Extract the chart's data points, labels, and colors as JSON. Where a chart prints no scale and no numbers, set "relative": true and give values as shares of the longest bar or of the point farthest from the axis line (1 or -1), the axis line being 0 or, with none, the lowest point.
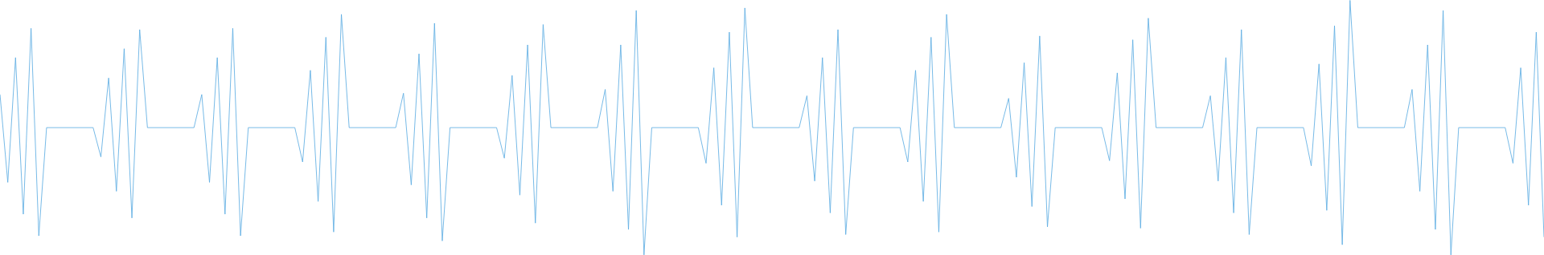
{
  "chart_data": {
    "type": "line",
    "relative": true,
    "categories": [
      null,
      null,
      null,
      null,
      null,
      null,
      null,
      null,
      null,
      null,
      null,
      null,
      null,
      null,
      null,
      null,
      null,
      null,
      null,
      null,
      null,
      null,
      null,
      null,
      null,
      null,
      null,
      null,
      null,
      null,
      null,
      null,
      null,
      null,
      null,
      null,
      null,
      null,
      null,
      null,
      null,
      null,
      null,
      null,
      null,
      null,
      null,
      null,
      null,
      null,
      null,
      null,
      null,
      null,
      null,
      null,
      null,
      null,
      null,
      null,
      null,
      null,
      null,
      null,
      null,
      null,
      null,
      null,
      null,
      null,
      null,
      null,
      null,
      null,
      null,
      null,
      null,
      null,
      null,
      null,
      null,
      null,
      null,
      null,
      null,
      null,
      null,
      null,
      null,
      null,
      null,
      null,
      null,
      null,
      null,
      null,
      null,
      null,
      null,
      null,
      null,
      null,
      null,
      null,
      null,
      null,
      null,
      null,
      null,
      null,
      null,
      null,
      null,
      null,
      null,
      null,
      null,
      null,
      null,
      null,
      null,
      null,
      null,
      null,
      null,
      null,
      null,
      null,
      null,
      null,
      null,
      null,
      null,
      null,
      null,
      null,
      null,
      null,
      null,
      null,
      null,
      null,
      null,
      null,
      null,
      null,
      null,
      null,
      null,
      null,
      null,
      null,
      null,
      null,
      null,
      null,
      null,
      null,
      null,
      null,
      null,
      null,
      null,
      null,
      null,
      null,
      null,
      null,
      null,
      null,
      null,
      null,
      null,
      null,
      null,
      null,
      null,
      null,
      null,
      null,
      null,
      null,
      null,
      null,
      null,
      null,
      null,
      null,
      null,
      null,
      null,
      null,
      null,
      null,
      null,
      null,
      null,
      null,
      null,
      null
    ],
    "series": [
      {
        "color": "#5dade2",
        "values": [
          0.63,
          0.285,
          0.775,
          0.16,
          0.89,
          0.075,
          0.5,
          0.5,
          0.5,
          0.5,
          0.5,
          0.5,
          0.5,
          0.385,
          0.695,
          0.25,
          0.81,
          0.145,
          0.885,
          0.5,
          0.5,
          0.5,
          0.5,
          0.5,
          0.5,
          0.5,
          0.63,
          0.285,
          0.775,
          0.16,
          0.89,
          0.075,
          0.5,
          0.5,
          0.5,
          0.5,
          0.5,
          0.5,
          0.5,
          0.365,
          0.725,
          0.21,
          0.855,
          0.09,
          0.945,
          0.5,
          0.5,
          0.5,
          0.5,
          0.5,
          0.5,
          0.5,
          0.635,
          0.275,
          0.79,
          0.145,
          0.91,
          0.055,
          0.5,
          0.5,
          0.5,
          0.5,
          0.5,
          0.5,
          0.5,
          0.38,
          0.705,
          0.235,
          0.825,
          0.125,
          0.905,
          0.5,
          0.5,
          0.5,
          0.5,
          0.5,
          0.5,
          0.5,
          0.65,
          0.25,
          0.825,
          0.1,
          0.96,
          0,
          0.5,
          0.5,
          0.5,
          0.5,
          0.5,
          0.5,
          0.5,
          0.36,
          0.735,
          0.195,
          0.875,
          0.07,
          0.97,
          0.5,
          0.5,
          0.5,
          0.5,
          0.5,
          0.5,
          0.5,
          0.625,
          0.29,
          0.775,
          0.165,
          0.885,
          0.08,
          0.5,
          0.5,
          0.5,
          0.5,
          0.5,
          0.5,
          0.5,
          0.365,
          0.725,
          0.21,
          0.855,
          0.09,
          0.945,
          0.5,
          0.5,
          0.5,
          0.5,
          0.5,
          0.5,
          0.5,
          0.615,
          0.305,
          0.755,
          0.19,
          0.86,
          0.11,
          0.5,
          0.5,
          0.5,
          0.5,
          0.5,
          0.5,
          0.5,
          0.37,
          0.715,
          0.22,
          0.845,
          0.105,
          0.93,
          0.5,
          0.5,
          0.5,
          0.5,
          0.5,
          0.5,
          0.5,
          0.625,
          0.29,
          0.775,
          0.165,
          0.885,
          0.08,
          0.5,
          0.5,
          0.5,
          0.5,
          0.5,
          0.5,
          0.5,
          0.35,
          0.75,
          0.175,
          0.9,
          0.04,
          1,
          0.5,
          0.5,
          0.5,
          0.5,
          0.5,
          0.5,
          0.5,
          0.65,
          0.25,
          0.825,
          0.1,
          0.96,
          0,
          0.5,
          0.5,
          0.5,
          0.5,
          0.5,
          0.5,
          0.5,
          0.36,
          0.735,
          0.195,
          0.875,
          0.07
        ]
      }
    ]
  }
}
